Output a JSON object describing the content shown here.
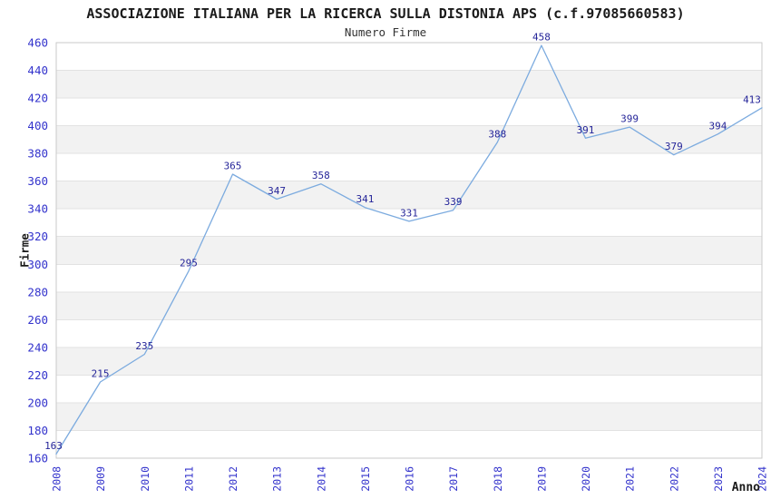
{
  "chart_data": {
    "type": "line",
    "title": "ASSOCIAZIONE ITALIANA PER LA RICERCA SULLA DISTONIA APS (c.f.97085660583)",
    "subtitle": "Numero Firme",
    "xlabel": "Anno",
    "ylabel": "Firme",
    "categories": [
      "2008",
      "2009",
      "2010",
      "2011",
      "2012",
      "2013",
      "2014",
      "2015",
      "2016",
      "2017",
      "2018",
      "2019",
      "2020",
      "2021",
      "2022",
      "2023",
      "2024"
    ],
    "values": [
      163,
      215,
      235,
      295,
      365,
      347,
      358,
      341,
      331,
      339,
      388,
      458,
      391,
      399,
      379,
      394,
      413
    ],
    "ylim": [
      160,
      460
    ],
    "y_ticks": [
      160,
      180,
      200,
      220,
      240,
      260,
      280,
      300,
      320,
      340,
      360,
      380,
      400,
      420,
      440,
      460
    ],
    "grid": "horizontal-alternating-bands",
    "legend": "none",
    "colors": {
      "line": "#7cabdf",
      "data_label": "#252599",
      "tick_label": "#3333cc",
      "band_gray": "#f2f2f2",
      "band_white": "#ffffff",
      "gridline": "#e2e2e2",
      "plot_border": "#c9c9c9",
      "title_text": "#1a1a1a"
    }
  }
}
